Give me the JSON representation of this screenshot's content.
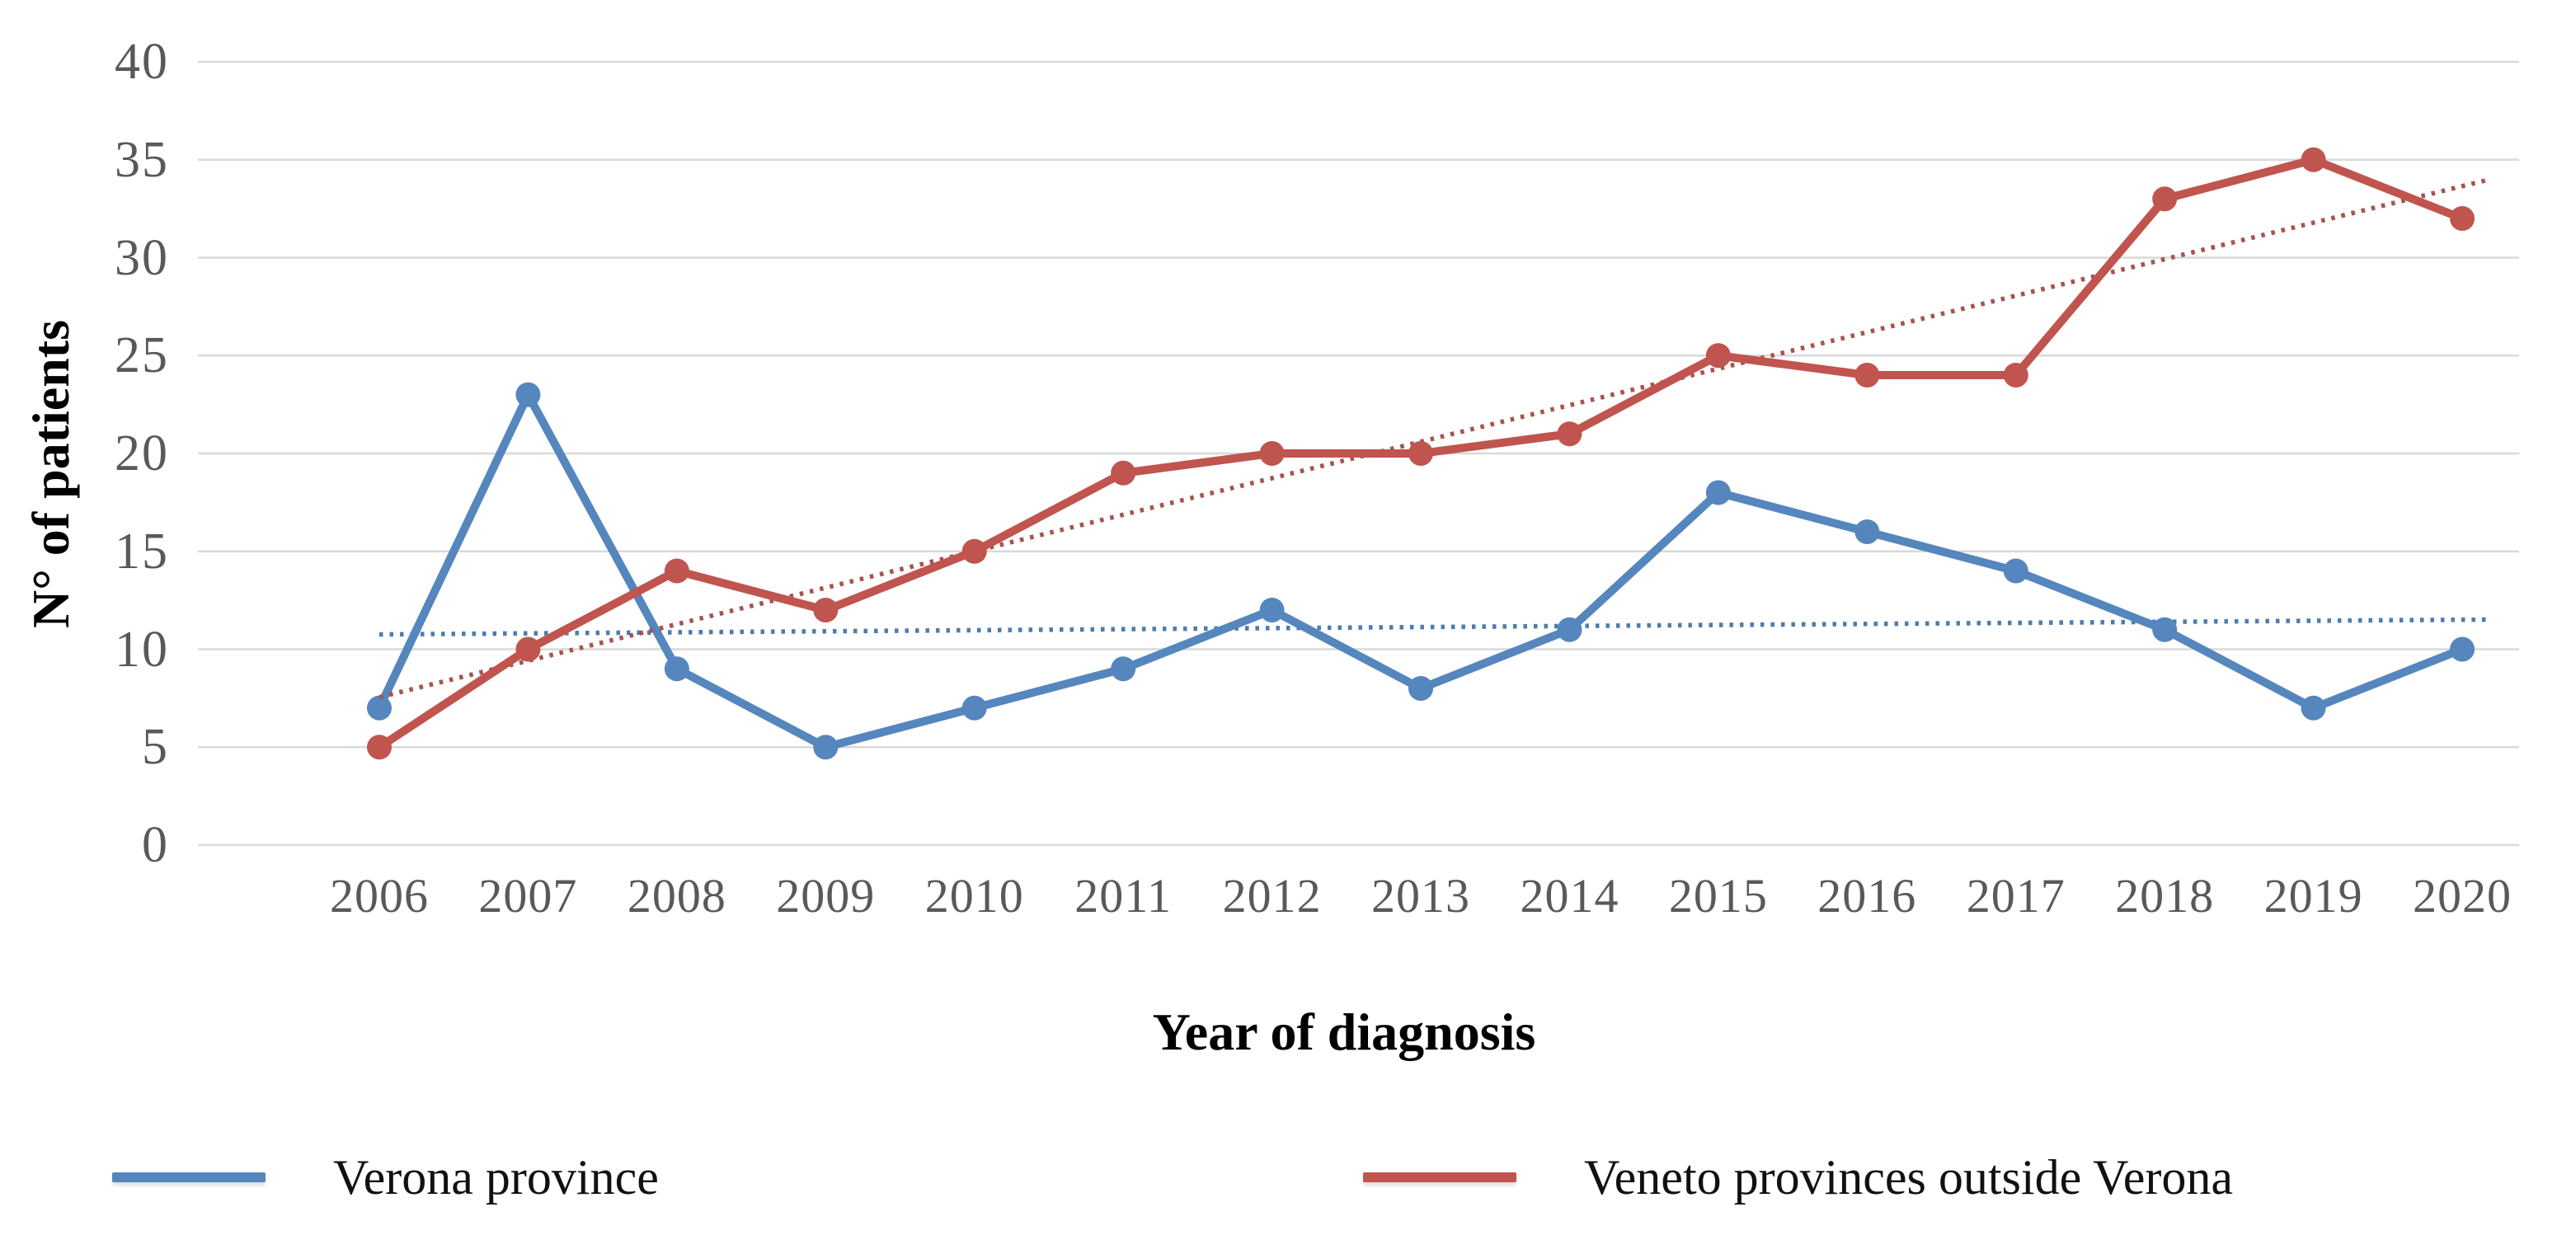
{
  "chart_data": {
    "type": "line",
    "title": "",
    "xlabel": "Year of diagnosis",
    "ylabel": "N° of patients",
    "categories": [
      "2006",
      "2007",
      "2008",
      "2009",
      "2010",
      "2011",
      "2012",
      "2013",
      "2014",
      "2015",
      "2016",
      "2017",
      "2018",
      "2019",
      "2020"
    ],
    "series": [
      {
        "name": "Verona province",
        "color": "#5586bd",
        "trend_color": "#4e7cab",
        "marker": "circle",
        "values": [
          7,
          23,
          9,
          5,
          7,
          9,
          12,
          8,
          11,
          18,
          16,
          14,
          11,
          7,
          10
        ],
        "trendline": "linear-dotted"
      },
      {
        "name": "Veneto provinces outside Verona",
        "color": "#c0544e",
        "trend_color": "#a6544f",
        "marker": "circle",
        "values": [
          5,
          10,
          14,
          12,
          15,
          19,
          20,
          20,
          21,
          25,
          24,
          24,
          33,
          35,
          32
        ],
        "trendline": "linear-dotted"
      }
    ],
    "ylim": [
      0,
      40
    ],
    "ytick_step": 5,
    "y_ticks": [
      40,
      35,
      30,
      25,
      20,
      15,
      10,
      5,
      0
    ],
    "grid": "horizontal-only",
    "gridline_color": "#d9d9d9",
    "tick_label_color": "#595959",
    "legend_position": "bottom"
  }
}
